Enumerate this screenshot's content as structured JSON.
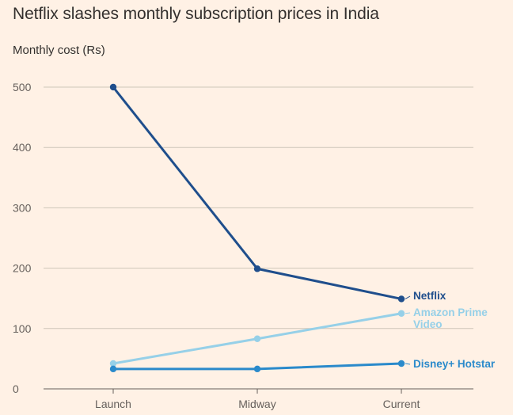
{
  "colors": {
    "background": "#fff1e5",
    "grid": "#cec6b9",
    "axis": "#66605c",
    "text": "#33302e"
  },
  "chart_data": {
    "type": "line",
    "title": "Netflix slashes monthly subscription prices in India",
    "ylabel": "Monthly cost (Rs)",
    "xlabel": "",
    "categories": [
      "Launch",
      "Midway",
      "Current"
    ],
    "ylim": [
      0,
      500
    ],
    "yticks": [
      0,
      100,
      200,
      300,
      400,
      500
    ],
    "grid": true,
    "legend": "direct labels at line ends",
    "series": [
      {
        "name": "Netflix",
        "label_lines": [
          "Netflix"
        ],
        "color": "#1f4e8c",
        "values": [
          500,
          199,
          149
        ]
      },
      {
        "name": "Amazon Prime Video",
        "label_lines": [
          "Amazon Prime",
          "Video"
        ],
        "color": "#96d0e8",
        "values": [
          42,
          83,
          125
        ]
      },
      {
        "name": "Disney+ Hotstar",
        "label_lines": [
          "Disney+ Hotstar"
        ],
        "color": "#2a8acb",
        "values": [
          33,
          33,
          42
        ]
      }
    ]
  }
}
